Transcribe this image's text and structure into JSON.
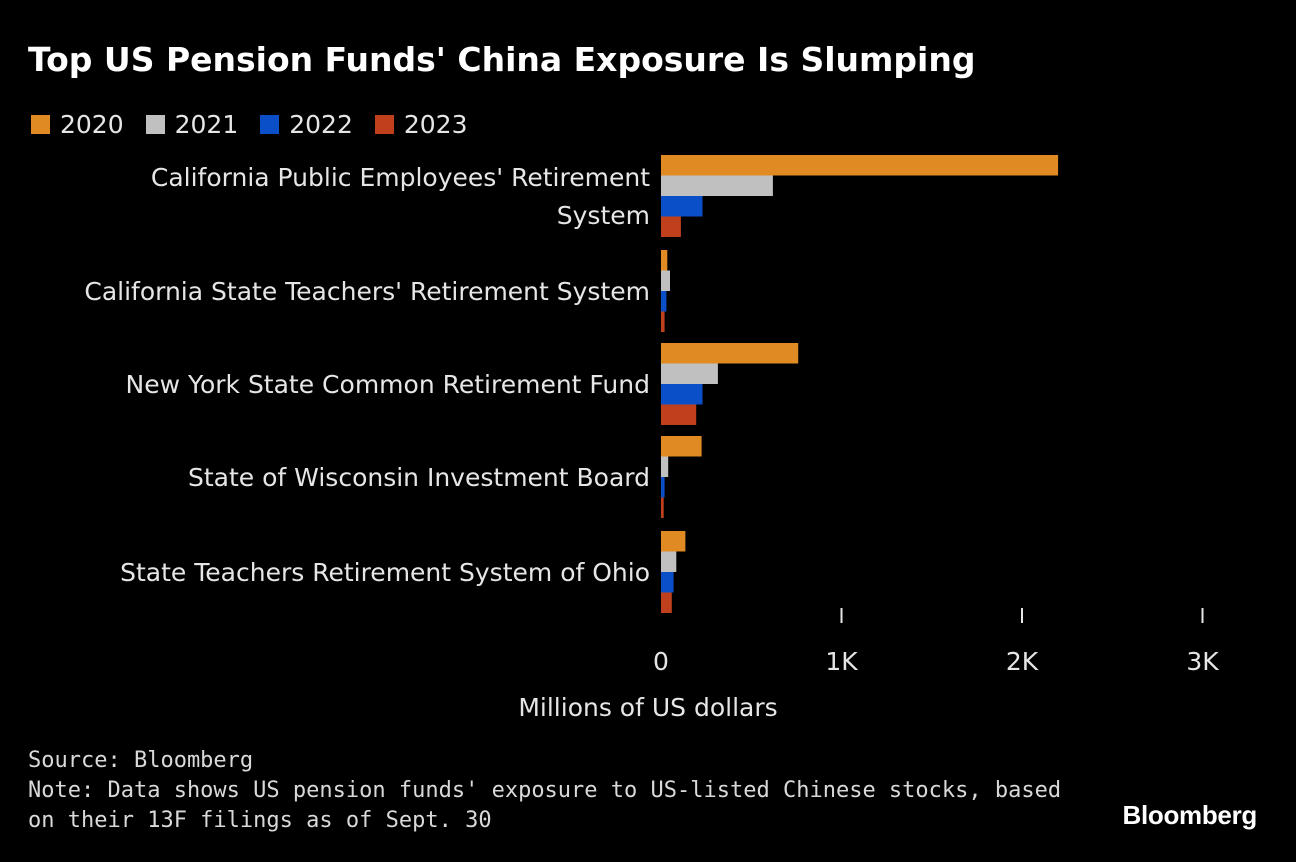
{
  "header": {
    "title": "Top US Pension Funds' China Exposure Is Slumping"
  },
  "legend": [
    {
      "label": "2020",
      "color": "#e08a24"
    },
    {
      "label": "2021",
      "color": "#c0c0c0"
    },
    {
      "label": "2022",
      "color": "#0b4fc8"
    },
    {
      "label": "2023",
      "color": "#c0401e"
    }
  ],
  "footer": {
    "source": "Source: Bloomberg",
    "note_line1": "Note: Data shows US pension funds' exposure to US-listed Chinese stocks, based",
    "note_line2": "on their 13F filings as of Sept. 30"
  },
  "brand": "Bloomberg",
  "chart_data": {
    "type": "bar",
    "orientation": "horizontal",
    "title": "Top US Pension Funds' China Exposure Is Slumping",
    "xlabel": "Millions of US dollars",
    "ylabel": "",
    "xlim": [
      0,
      3000
    ],
    "xticks": [
      0,
      1000,
      2000,
      3000
    ],
    "xtick_labels": [
      "0",
      "1K",
      "2K",
      "3K"
    ],
    "categories": [
      [
        "California Public Employees' Retirement",
        "System"
      ],
      [
        "California State Teachers' Retirement System"
      ],
      [
        "New York State Common Retirement Fund"
      ],
      [
        "State of Wisconsin Investment Board"
      ],
      [
        "State Teachers Retirement System of Ohio"
      ]
    ],
    "series": [
      {
        "name": "2020",
        "color": "#e08a24",
        "values": [
          2200,
          35,
          760,
          225,
          135
        ]
      },
      {
        "name": "2021",
        "color": "#c0c0c0",
        "values": [
          620,
          50,
          315,
          40,
          85
        ]
      },
      {
        "name": "2022",
        "color": "#0b4fc8",
        "values": [
          230,
          30,
          230,
          20,
          70
        ]
      },
      {
        "name": "2023",
        "color": "#c0401e",
        "values": [
          110,
          20,
          195,
          15,
          60
        ]
      }
    ],
    "grid": false,
    "legend_position": "top-left"
  }
}
